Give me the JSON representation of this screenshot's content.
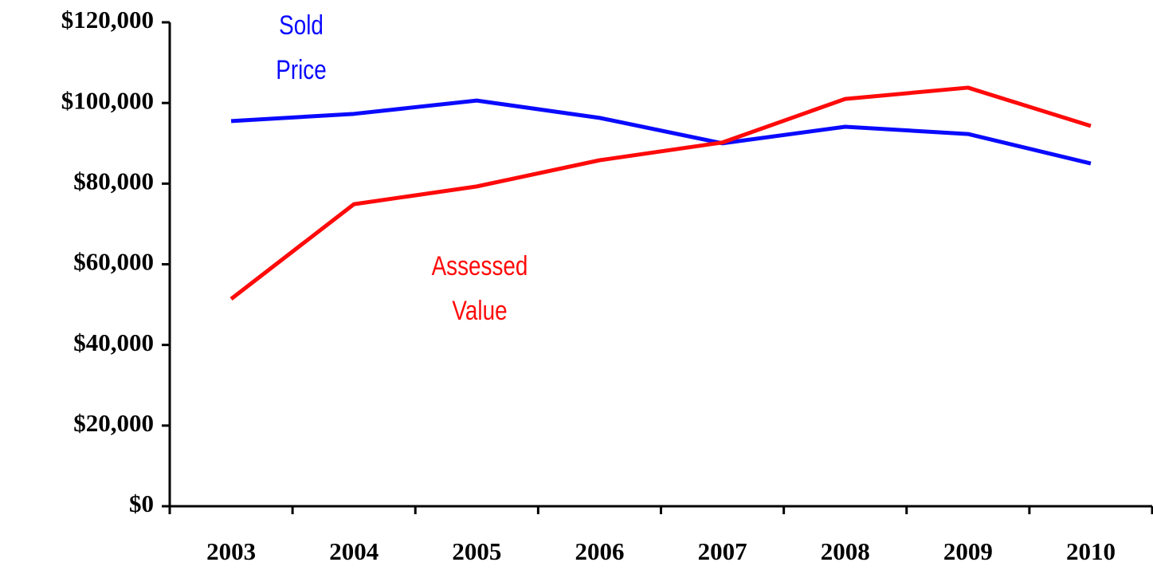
{
  "chart_data": {
    "type": "line",
    "categories": [
      "2003",
      "2004",
      "2005",
      "2006",
      "2007",
      "2008",
      "2009",
      "2010"
    ],
    "series": [
      {
        "color": "#0a0aff",
        "values": [
          95500,
          97300,
          100600,
          96300,
          90000,
          94100,
          92300,
          85000
        ]
      },
      {
        "color": "#ff0a0a",
        "values": [
          51400,
          74900,
          79300,
          85800,
          90200,
          101000,
          103800,
          94300
        ]
      }
    ],
    "annotations": [
      {
        "lines": [
          "Sold",
          "Price"
        ],
        "color": "#0a0aff"
      },
      {
        "lines": [
          "Assessed",
          "Value"
        ],
        "color": "#ff0a0a"
      }
    ],
    "ylim": [
      0,
      120000
    ],
    "yticks": [
      {
        "value": 0,
        "label": "$0"
      },
      {
        "value": 20000,
        "label": "$20,000"
      },
      {
        "value": 40000,
        "label": "$40,000"
      },
      {
        "value": 60000,
        "label": "$60,000"
      },
      {
        "value": 80000,
        "label": "$80,000"
      },
      {
        "value": 100000,
        "label": "$100,000"
      },
      {
        "value": 120000,
        "label": "$120,000"
      }
    ],
    "grid": false
  }
}
